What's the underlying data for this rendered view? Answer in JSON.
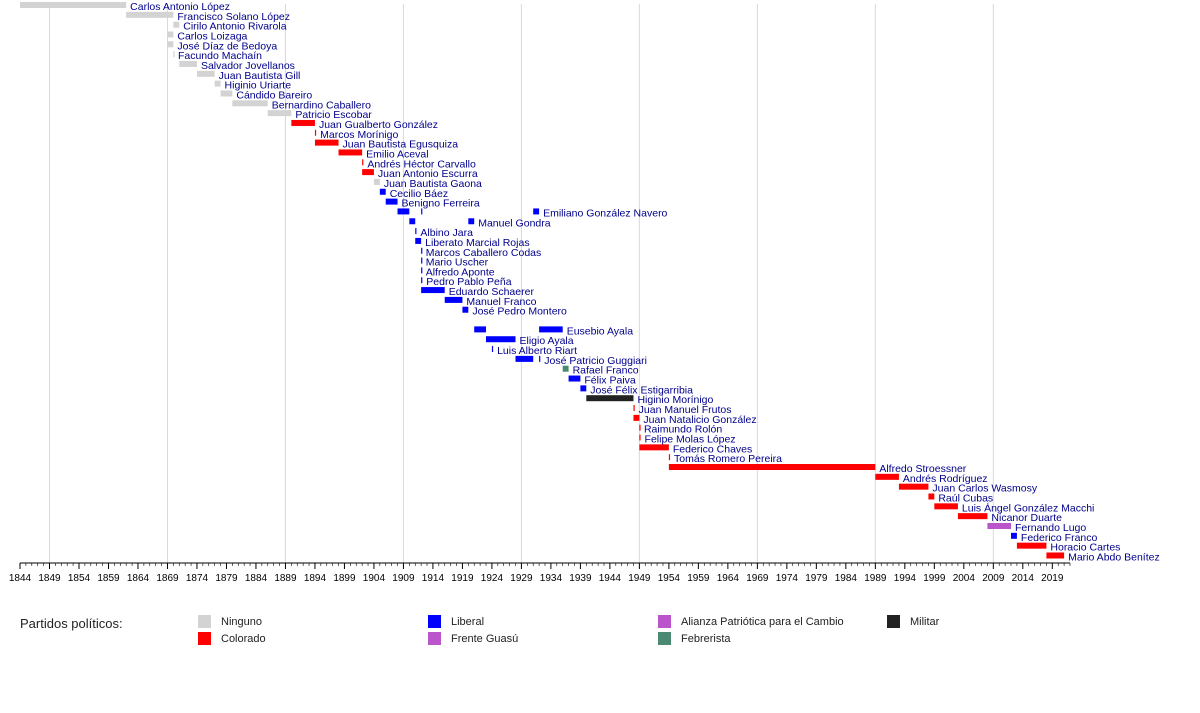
{
  "chart_data": {
    "type": "timeline",
    "xlim": [
      1844,
      2022
    ],
    "x_ticks": [
      1844,
      1849,
      1854,
      1859,
      1864,
      1869,
      1874,
      1879,
      1884,
      1889,
      1894,
      1899,
      1904,
      1909,
      1914,
      1919,
      1924,
      1929,
      1934,
      1939,
      1944,
      1949,
      1954,
      1959,
      1964,
      1969,
      1974,
      1979,
      1984,
      1989,
      1994,
      1999,
      2004,
      2009,
      2014,
      2019
    ],
    "gridlines": [
      1849,
      1869,
      1889,
      1909,
      1929,
      1949,
      1969,
      1989,
      2009
    ],
    "party_colors": {
      "Ninguno": "#d3d3d3",
      "Colorado": "#ff0000",
      "Liberal": "#0000ff",
      "Frente Guasú": "#bb55cc",
      "Alianza Patriótica para el Cambio": "#bb55cc",
      "Febrerista": "#4a8a72",
      "Militar": "#222222"
    },
    "rows": [
      {
        "label": "Carlos Antonio López",
        "party": "Ninguno",
        "terms": [
          [
            1844,
            1862
          ]
        ]
      },
      {
        "label": "Francisco Solano López",
        "party": "Ninguno",
        "terms": [
          [
            1862,
            1870
          ]
        ]
      },
      {
        "label": "Cirilo Antonio Rivarola",
        "party": "Ninguno",
        "terms": [
          [
            1870,
            1871
          ]
        ]
      },
      {
        "label": "Carlos Loizaga",
        "party": "Ninguno",
        "terms": [
          [
            1869,
            1870
          ]
        ]
      },
      {
        "label": "José Díaz de Bedoya",
        "party": "Ninguno",
        "terms": [
          [
            1869,
            1870
          ]
        ]
      },
      {
        "label": "Facundo Machaín",
        "party": "Ninguno",
        "terms": [
          [
            1870,
            1870.1
          ]
        ]
      },
      {
        "label": "Salvador Jovellanos",
        "party": "Ninguno",
        "terms": [
          [
            1871,
            1874
          ]
        ]
      },
      {
        "label": "Juan Bautista Gill",
        "party": "Ninguno",
        "terms": [
          [
            1874,
            1877
          ]
        ]
      },
      {
        "label": "Higinio Uriarte",
        "party": "Ninguno",
        "terms": [
          [
            1877,
            1878
          ]
        ]
      },
      {
        "label": "Cándido Bareiro",
        "party": "Ninguno",
        "terms": [
          [
            1878,
            1880
          ]
        ]
      },
      {
        "label": "Bernardino Caballero",
        "party": "Ninguno",
        "terms": [
          [
            1880,
            1886
          ]
        ]
      },
      {
        "label": "Patricio Escobar",
        "party": "Ninguno",
        "terms": [
          [
            1886,
            1890
          ]
        ]
      },
      {
        "label": "Juan Gualberto González",
        "party": "Colorado",
        "terms": [
          [
            1890,
            1894
          ]
        ]
      },
      {
        "label": "Marcos Morínigo",
        "party": "Colorado",
        "terms": [
          [
            1894,
            1894.2
          ]
        ]
      },
      {
        "label": "Juan Bautista Egusquiza",
        "party": "Colorado",
        "terms": [
          [
            1894,
            1898
          ]
        ]
      },
      {
        "label": "Emilio Aceval",
        "party": "Colorado",
        "terms": [
          [
            1898,
            1902
          ]
        ]
      },
      {
        "label": "Andrés Héctor Carvallo",
        "party": "Colorado",
        "terms": [
          [
            1902,
            1902.2
          ]
        ]
      },
      {
        "label": "Juan Antonio Escurra",
        "party": "Colorado",
        "terms": [
          [
            1902,
            1904
          ]
        ]
      },
      {
        "label": "Juan Bautista Gaona",
        "party": "Ninguno",
        "terms": [
          [
            1904,
            1905
          ]
        ]
      },
      {
        "label": "Cecilio Báez",
        "party": "Liberal",
        "terms": [
          [
            1905,
            1906
          ]
        ]
      },
      {
        "label": "Benigno Ferreira",
        "party": "Liberal",
        "terms": [
          [
            1906,
            1908
          ]
        ]
      },
      {
        "label": "Emiliano González Navero",
        "party": "Liberal",
        "terms": [
          [
            1908,
            1910
          ],
          [
            1912,
            1912.2
          ],
          [
            1931,
            1932
          ]
        ]
      },
      {
        "label": "Manuel Gondra",
        "party": "Liberal",
        "terms": [
          [
            1910,
            1911
          ],
          [
            1920,
            1921
          ]
        ]
      },
      {
        "label": "Albino Jara",
        "party": "Liberal",
        "terms": [
          [
            1911,
            1911.2
          ]
        ]
      },
      {
        "label": "Liberato Marcial Rojas",
        "party": "Liberal",
        "terms": [
          [
            1911,
            1912
          ]
        ]
      },
      {
        "label": "Marcos Caballero Codas",
        "party": "Liberal",
        "terms": [
          [
            1912,
            1912.1
          ]
        ]
      },
      {
        "label": "Mario Uscher",
        "party": "Liberal",
        "terms": [
          [
            1912,
            1912.1
          ]
        ]
      },
      {
        "label": "Alfredo Aponte",
        "party": "Liberal",
        "terms": [
          [
            1912,
            1912.1
          ]
        ]
      },
      {
        "label": "Pedro Pablo Peña",
        "party": "Liberal",
        "terms": [
          [
            1912,
            1912.2
          ]
        ]
      },
      {
        "label": "Eduardo Schaerer",
        "party": "Liberal",
        "terms": [
          [
            1912,
            1916
          ]
        ]
      },
      {
        "label": "Manuel Franco",
        "party": "Liberal",
        "terms": [
          [
            1916,
            1919
          ]
        ]
      },
      {
        "label": "José Pedro Montero",
        "party": "Liberal",
        "terms": [
          [
            1919,
            1920
          ]
        ]
      },
      {
        "label": "",
        "party": "Liberal",
        "terms": []
      },
      {
        "label": "Eusebio Ayala",
        "party": "Liberal",
        "terms": [
          [
            1921,
            1923
          ],
          [
            1932,
            1936
          ]
        ]
      },
      {
        "label": "Eligio Ayala",
        "party": "Liberal",
        "terms": [
          [
            1923,
            1928
          ]
        ]
      },
      {
        "label": "Luis Alberto Riart",
        "party": "Liberal",
        "terms": [
          [
            1924,
            1924.2
          ]
        ]
      },
      {
        "label": "José Patricio Guggiari",
        "party": "Liberal",
        "terms": [
          [
            1928,
            1931
          ],
          [
            1932,
            1932.2
          ]
        ]
      },
      {
        "label": "Rafael Franco",
        "party": "Febrerista",
        "terms": [
          [
            1936,
            1937
          ]
        ]
      },
      {
        "label": "Félix Paiva",
        "party": "Liberal",
        "terms": [
          [
            1937,
            1939
          ]
        ]
      },
      {
        "label": "José Félix Estigarribia",
        "party": "Liberal",
        "terms": [
          [
            1939,
            1940
          ]
        ]
      },
      {
        "label": "Higinio Morínigo",
        "party": "Militar",
        "terms": [
          [
            1940,
            1948
          ]
        ]
      },
      {
        "label": "Juan Manuel Frutos",
        "party": "Colorado",
        "terms": [
          [
            1948,
            1948.2
          ]
        ]
      },
      {
        "label": "Juan Natalicio González",
        "party": "Colorado",
        "terms": [
          [
            1948,
            1949
          ]
        ]
      },
      {
        "label": "Raimundo Rolón",
        "party": "Colorado",
        "terms": [
          [
            1949,
            1949.1
          ]
        ]
      },
      {
        "label": "Felipe Molas López",
        "party": "Colorado",
        "terms": [
          [
            1949,
            1949.2
          ]
        ]
      },
      {
        "label": "Federico Chaves",
        "party": "Colorado",
        "terms": [
          [
            1949,
            1954
          ]
        ]
      },
      {
        "label": "Tomás Romero Pereira",
        "party": "Colorado",
        "terms": [
          [
            1954,
            1954.2
          ]
        ]
      },
      {
        "label": "Alfredo Stroessner",
        "party": "Colorado",
        "terms": [
          [
            1954,
            1989
          ]
        ]
      },
      {
        "label": "Andrés Rodríguez",
        "party": "Colorado",
        "terms": [
          [
            1989,
            1993
          ]
        ]
      },
      {
        "label": "Juan Carlos Wasmosy",
        "party": "Colorado",
        "terms": [
          [
            1993,
            1998
          ]
        ]
      },
      {
        "label": "Raúl Cubas",
        "party": "Colorado",
        "terms": [
          [
            1998,
            1999
          ]
        ]
      },
      {
        "label": "Luis Ángel González Macchi",
        "party": "Colorado",
        "terms": [
          [
            1999,
            2003
          ]
        ]
      },
      {
        "label": "Nicanor Duarte",
        "party": "Colorado",
        "terms": [
          [
            2003,
            2008
          ]
        ]
      },
      {
        "label": "Fernando Lugo",
        "party": "Frente Guasú",
        "terms": [
          [
            2008,
            2012
          ]
        ]
      },
      {
        "label": "Federico Franco",
        "party": "Liberal",
        "terms": [
          [
            2012,
            2013
          ]
        ]
      },
      {
        "label": "Horacio Cartes",
        "party": "Colorado",
        "terms": [
          [
            2013,
            2018
          ]
        ]
      },
      {
        "label": "Mario Abdo Benítez",
        "party": "Colorado",
        "terms": [
          [
            2018,
            2021
          ]
        ]
      }
    ]
  },
  "legend": {
    "title": "Partidos políticos:",
    "items": [
      {
        "label": "Ninguno",
        "color": "#d3d3d3"
      },
      {
        "label": "Colorado",
        "color": "#ff0000"
      },
      {
        "label": "Liberal",
        "color": "#0000ff"
      },
      {
        "label": "Frente Guasú",
        "color": "#bb55cc"
      },
      {
        "label": "Alianza Patriótica para el Cambio",
        "color": "#bb55cc"
      },
      {
        "label": "Febrerista",
        "color": "#4a8a72"
      },
      {
        "label": "Militar",
        "color": "#222222"
      }
    ]
  }
}
